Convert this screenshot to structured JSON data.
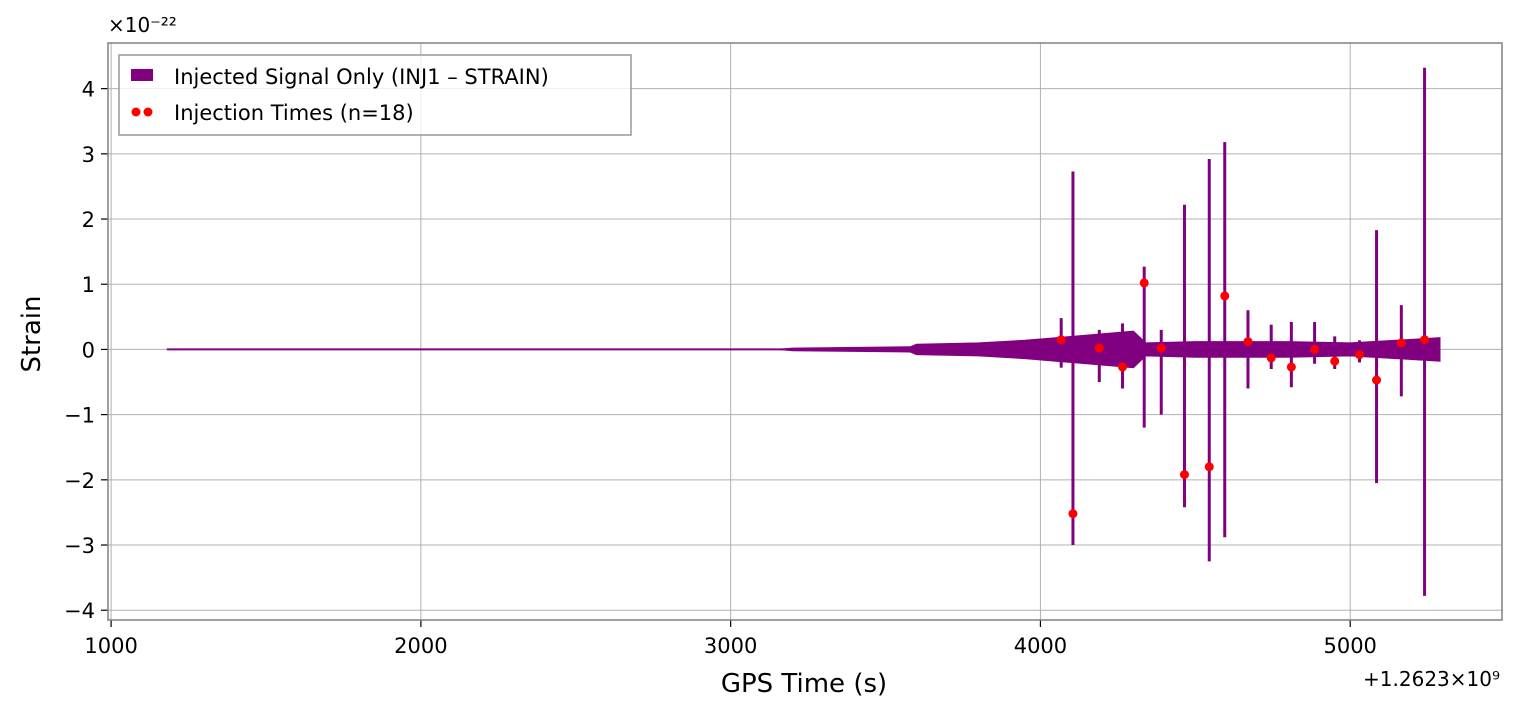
{
  "chart_data": {
    "type": "line",
    "title": "",
    "xlabel": "GPS Time (s)",
    "ylabel": "Strain",
    "x_offset_label": "+1.2623×10⁹",
    "y_scale_label": "×10⁻²²",
    "xlim": [
      990,
      5490
    ],
    "ylim": [
      -4.15,
      4.7
    ],
    "x_ticks": [
      1000,
      2000,
      3000,
      4000,
      5000
    ],
    "x_tick_labels": [
      "1000",
      "2000",
      "3000",
      "4000",
      "5000"
    ],
    "y_ticks": [
      -4,
      -3,
      -2,
      -1,
      0,
      1,
      2,
      3,
      4
    ],
    "y_tick_labels": [
      "−4",
      "−3",
      "−2",
      "−1",
      "0",
      "1",
      "2",
      "3",
      "4"
    ],
    "grid": true,
    "legend_position": "top-left",
    "colors": {
      "signal": "#800080",
      "injections": "#ff0000",
      "grid": "#b0b0b0",
      "axes": "#808080"
    },
    "series": [
      {
        "name": "Injected Signal Only (INJ1 – STRAIN)",
        "kind": "signal",
        "x_start": 1180,
        "x_end": 5290,
        "envelope": [
          {
            "x": 1180,
            "amp": 0.0
          },
          {
            "x": 3150,
            "amp": 0.0
          },
          {
            "x": 3200,
            "amp": 0.02
          },
          {
            "x": 3580,
            "amp": 0.04
          },
          {
            "x": 3600,
            "amp": 0.08
          },
          {
            "x": 3800,
            "amp": 0.1
          },
          {
            "x": 3950,
            "amp": 0.14
          },
          {
            "x": 4050,
            "amp": 0.18
          },
          {
            "x": 4150,
            "amp": 0.22
          },
          {
            "x": 4300,
            "amp": 0.28
          },
          {
            "x": 4340,
            "amp": 0.1
          },
          {
            "x": 4500,
            "amp": 0.12
          },
          {
            "x": 4800,
            "amp": 0.12
          },
          {
            "x": 5000,
            "amp": 0.1
          },
          {
            "x": 5290,
            "amp": 0.18
          }
        ],
        "spikes": [
          {
            "x": 4067,
            "max": 0.48,
            "min": -0.28
          },
          {
            "x": 4105,
            "max": 2.73,
            "min": -3.0
          },
          {
            "x": 4190,
            "max": 0.3,
            "min": -0.5
          },
          {
            "x": 4265,
            "max": 0.4,
            "min": -0.6
          },
          {
            "x": 4335,
            "max": 1.27,
            "min": -1.2
          },
          {
            "x": 4390,
            "max": 0.3,
            "min": -1.0
          },
          {
            "x": 4465,
            "max": 2.22,
            "min": -2.42
          },
          {
            "x": 4545,
            "max": 2.92,
            "min": -3.25
          },
          {
            "x": 4595,
            "max": 3.18,
            "min": -2.88
          },
          {
            "x": 4670,
            "max": 0.6,
            "min": -0.6
          },
          {
            "x": 4745,
            "max": 0.38,
            "min": -0.3
          },
          {
            "x": 4810,
            "max": 0.42,
            "min": -0.58
          },
          {
            "x": 4885,
            "max": 0.42,
            "min": -0.22
          },
          {
            "x": 4950,
            "max": 0.2,
            "min": -0.3
          },
          {
            "x": 5030,
            "max": 0.14,
            "min": -0.2
          },
          {
            "x": 5085,
            "max": 1.83,
            "min": -2.05
          },
          {
            "x": 5165,
            "max": 0.68,
            "min": -0.72
          },
          {
            "x": 5240,
            "max": 4.32,
            "min": -3.78
          }
        ]
      },
      {
        "name": "Injection Times (n=18)",
        "kind": "scatter",
        "points": [
          {
            "x": 4067,
            "y": 0.15
          },
          {
            "x": 4105,
            "y": -2.52
          },
          {
            "x": 4190,
            "y": 0.02
          },
          {
            "x": 4265,
            "y": -0.27
          },
          {
            "x": 4335,
            "y": 1.02
          },
          {
            "x": 4390,
            "y": 0.02
          },
          {
            "x": 4465,
            "y": -1.92
          },
          {
            "x": 4545,
            "y": -1.8
          },
          {
            "x": 4595,
            "y": 0.82
          },
          {
            "x": 4670,
            "y": 0.12
          },
          {
            "x": 4745,
            "y": -0.13
          },
          {
            "x": 4810,
            "y": -0.27
          },
          {
            "x": 4885,
            "y": 0.0
          },
          {
            "x": 4950,
            "y": -0.18
          },
          {
            "x": 5030,
            "y": -0.08
          },
          {
            "x": 5085,
            "y": -0.47
          },
          {
            "x": 5165,
            "y": 0.1
          },
          {
            "x": 5240,
            "y": 0.15
          }
        ]
      }
    ]
  }
}
